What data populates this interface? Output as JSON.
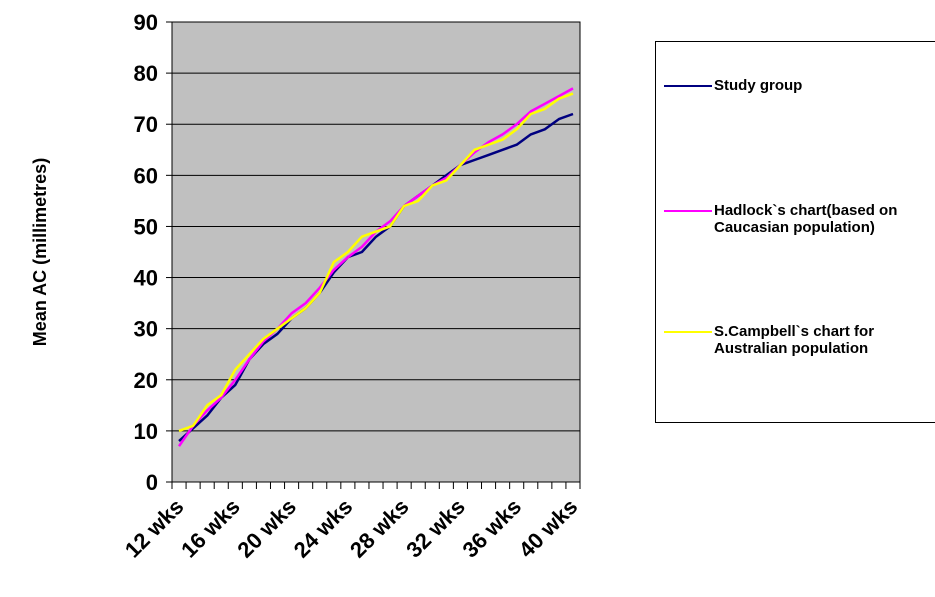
{
  "chart_data": {
    "type": "line",
    "ylabel": "Mean AC (millimetres)",
    "xlabel": "",
    "ylim": [
      0,
      90
    ],
    "yticks": [
      0,
      10,
      20,
      30,
      40,
      50,
      60,
      70,
      80,
      90
    ],
    "grid": true,
    "plot_background": "#c0c0c0",
    "legend_position": "right",
    "x": [
      "12 wks",
      "13 wks",
      "14 wks",
      "15 wks",
      "16 wks",
      "17 wks",
      "18 wks",
      "19 wks",
      "20 wks",
      "21 wks",
      "22 wks",
      "23 wks",
      "24 wks",
      "25 wks",
      "26 wks",
      "27 wks",
      "28 wks",
      "29 wks",
      "30 wks",
      "31 wks",
      "32 wks",
      "33 wks",
      "34 wks",
      "35 wks",
      "36 wks",
      "37 wks",
      "38 wks",
      "39 wks",
      "40 wks"
    ],
    "x_tick_labels": [
      "12 wks",
      "16 wks",
      "20 wks",
      "24 wks",
      "28 wks",
      "32 wks",
      "36 wks",
      "40 wks"
    ],
    "series": [
      {
        "name": "Study group",
        "color": "#000080",
        "values": [
          8,
          10.5,
          13,
          16.5,
          19,
          24,
          27,
          29,
          32,
          34,
          37,
          41,
          44,
          45,
          48,
          50,
          54,
          56,
          58,
          60,
          62,
          63,
          64,
          65,
          66,
          68,
          69,
          71,
          72
        ]
      },
      {
        "name": "Hadlock`s chart(based on Caucasian population)",
        "color": "#ff00ff",
        "values": [
          7,
          11,
          14,
          16.5,
          20,
          24,
          27.5,
          30,
          33,
          35,
          38,
          41.5,
          44,
          46,
          49,
          51,
          54,
          56,
          58,
          59.5,
          62,
          64.5,
          66.5,
          68,
          70,
          72.5,
          74,
          75.5,
          77
        ]
      },
      {
        "name": "S.Campbell`s chart for Australian population",
        "color": "#ffff00",
        "values": [
          10,
          11,
          15,
          17,
          22,
          25,
          28,
          30,
          32,
          34,
          37,
          43,
          45,
          48,
          49,
          50,
          54,
          55,
          58,
          59,
          62,
          65,
          66,
          67,
          69,
          72,
          73,
          75,
          76
        ]
      }
    ]
  }
}
